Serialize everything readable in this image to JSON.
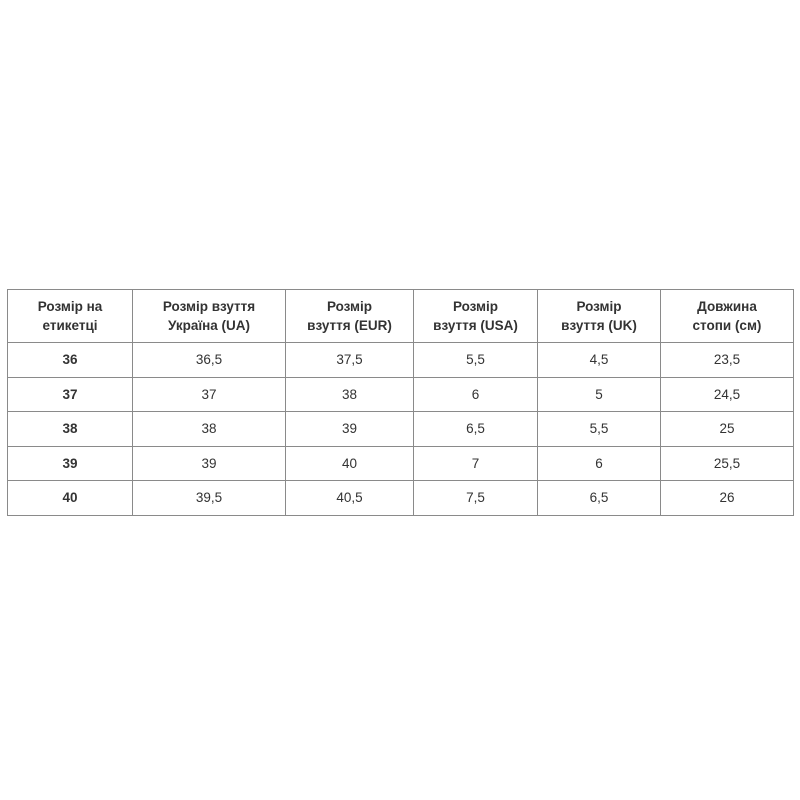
{
  "table": {
    "header": [
      [
        "Розмір на",
        "етикетці"
      ],
      [
        "Розмір взуття",
        "Україна (UA)"
      ],
      [
        "Розмір",
        "взуття (EUR)"
      ],
      [
        "Розмір",
        "взуття (USA)"
      ],
      [
        "Розмір",
        "взуття (UK)"
      ],
      [
        "Довжина",
        "стопи (см)"
      ]
    ],
    "rows": [
      [
        "36",
        "36,5",
        "37,5",
        "5,5",
        "4,5",
        "23,5"
      ],
      [
        "37",
        "37",
        "38",
        "6",
        "5",
        "24,5"
      ],
      [
        "38",
        "38",
        "39",
        "6,5",
        "5,5",
        "25"
      ],
      [
        "39",
        "39",
        "40",
        "7",
        "6",
        "25,5"
      ],
      [
        "40",
        "39,5",
        "40,5",
        "7,5",
        "6,5",
        "26"
      ]
    ]
  }
}
